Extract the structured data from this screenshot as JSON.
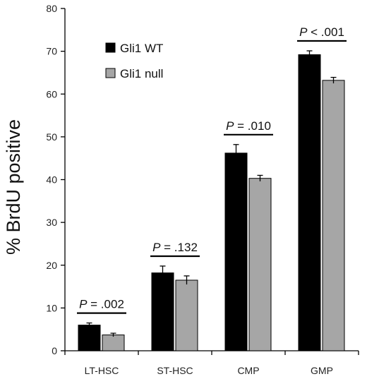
{
  "chart_data": {
    "type": "bar",
    "categories": [
      "LT-HSC",
      "ST-HSC",
      "CMP",
      "GMP"
    ],
    "series": [
      {
        "name": "Gli1 WT",
        "color": "#000000",
        "values": [
          6.0,
          18.2,
          46.2,
          69.2
        ],
        "errors": [
          0.5,
          1.6,
          2.0,
          0.9
        ]
      },
      {
        "name": "Gli1 null",
        "color": "#a6a6a6",
        "values": [
          3.7,
          16.5,
          40.3,
          63.2
        ],
        "errors": [
          0.4,
          1.0,
          0.7,
          0.7
        ]
      }
    ],
    "ylabel": "% BrdU positive",
    "xlabel": "",
    "ylim": [
      0,
      80
    ],
    "yticks": [
      "0",
      "10",
      "20",
      "30",
      "40",
      "50",
      "60",
      "70",
      "80"
    ],
    "grid": false,
    "legend_position": "top-left",
    "annotations": [
      {
        "category": "LT-HSC",
        "p_symbol": "P",
        "p_text": " = .002"
      },
      {
        "category": "ST-HSC",
        "p_symbol": "P",
        "p_text": " = .132"
      },
      {
        "category": "CMP",
        "p_symbol": "P",
        "p_text": " = .010"
      },
      {
        "category": "GMP",
        "p_symbol": "P",
        "p_text": " < .001"
      }
    ]
  }
}
